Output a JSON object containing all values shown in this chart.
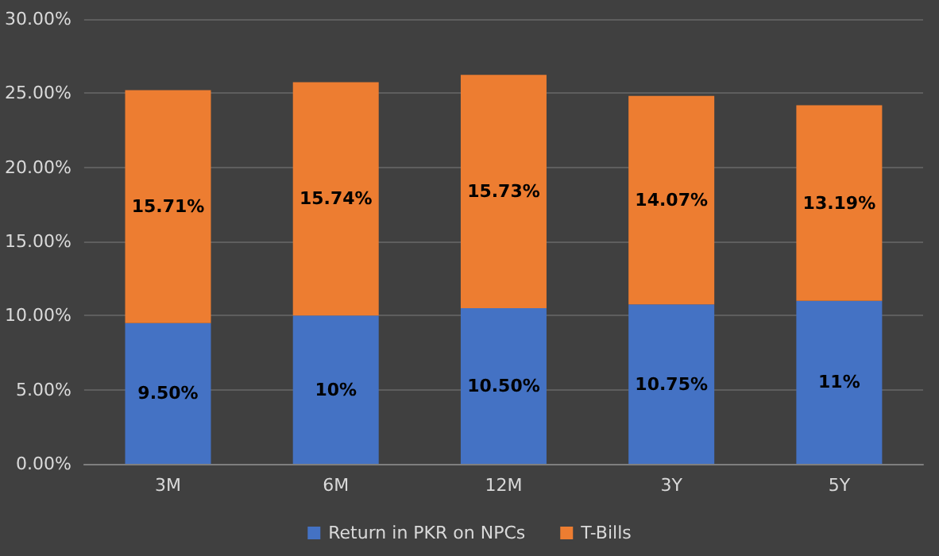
{
  "chart_data": {
    "type": "bar",
    "stacked": true,
    "categories": [
      "3M",
      "6M",
      "12M",
      "3Y",
      "5Y"
    ],
    "series": [
      {
        "name": "Return in PKR on NPCs",
        "color": "#4472c4",
        "values": [
          9.5,
          10,
          10.5,
          10.75,
          11
        ],
        "value_labels": [
          "9.50%",
          "10%",
          "10.50%",
          "10.75%",
          "11%"
        ]
      },
      {
        "name": "T-Bills",
        "color": "#ed7d31",
        "values": [
          15.71,
          15.74,
          15.73,
          14.07,
          13.19
        ],
        "value_labels": [
          "15.71%",
          "15.74%",
          "15.73%",
          "14.07%",
          "13.19%"
        ]
      }
    ],
    "ylim": [
      0,
      30
    ],
    "yticks": [
      {
        "value": 0,
        "label": "0.00%"
      },
      {
        "value": 5,
        "label": "5.00%"
      },
      {
        "value": 10,
        "label": "10.00%"
      },
      {
        "value": 15,
        "label": "15.00%"
      },
      {
        "value": 20,
        "label": "20.00%"
      },
      {
        "value": 25,
        "label": "25.00%"
      },
      {
        "value": 30,
        "label": "30.00%"
      }
    ],
    "grid": "y",
    "legend": "bottom"
  }
}
